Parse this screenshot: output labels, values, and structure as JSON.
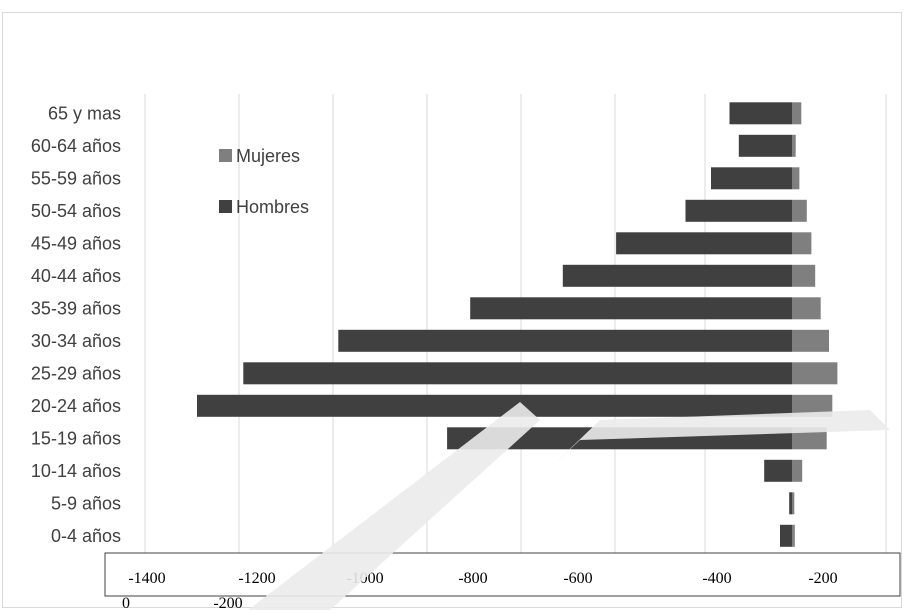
{
  "chart_data": {
    "type": "bar",
    "orientation": "horizontal",
    "categories": [
      "65 y mas",
      "60-64 años",
      "55-59 años",
      "50-54 años",
      "45-49 años",
      "40-44 años",
      "35-39 años",
      "30-34 años",
      "25-29 años",
      "20-24 años",
      "15-19 años",
      "10-14 años",
      "5-9 años",
      "0-4 años"
    ],
    "series": [
      {
        "name": "Mujeres",
        "color": "#7f7f7f",
        "values": [
          20,
          8,
          16,
          32,
          42,
          50,
          62,
          80,
          98,
          87,
          75,
          22,
          5,
          6
        ]
      },
      {
        "name": "Hombres",
        "color": "#404040",
        "values": [
          -135,
          -115,
          -175,
          -230,
          -380,
          -495,
          -695,
          -980,
          -1185,
          -1285,
          -745,
          -60,
          -6,
          -26
        ]
      }
    ],
    "xaxis": {
      "ticks": [
        "-1400",
        "-1200",
        "-1000",
        "-800",
        "-600",
        "-400",
        "-200"
      ],
      "extra_labels": [
        "0",
        "-200"
      ]
    },
    "legend": "upper-left inside plot",
    "grid": "vertical"
  }
}
